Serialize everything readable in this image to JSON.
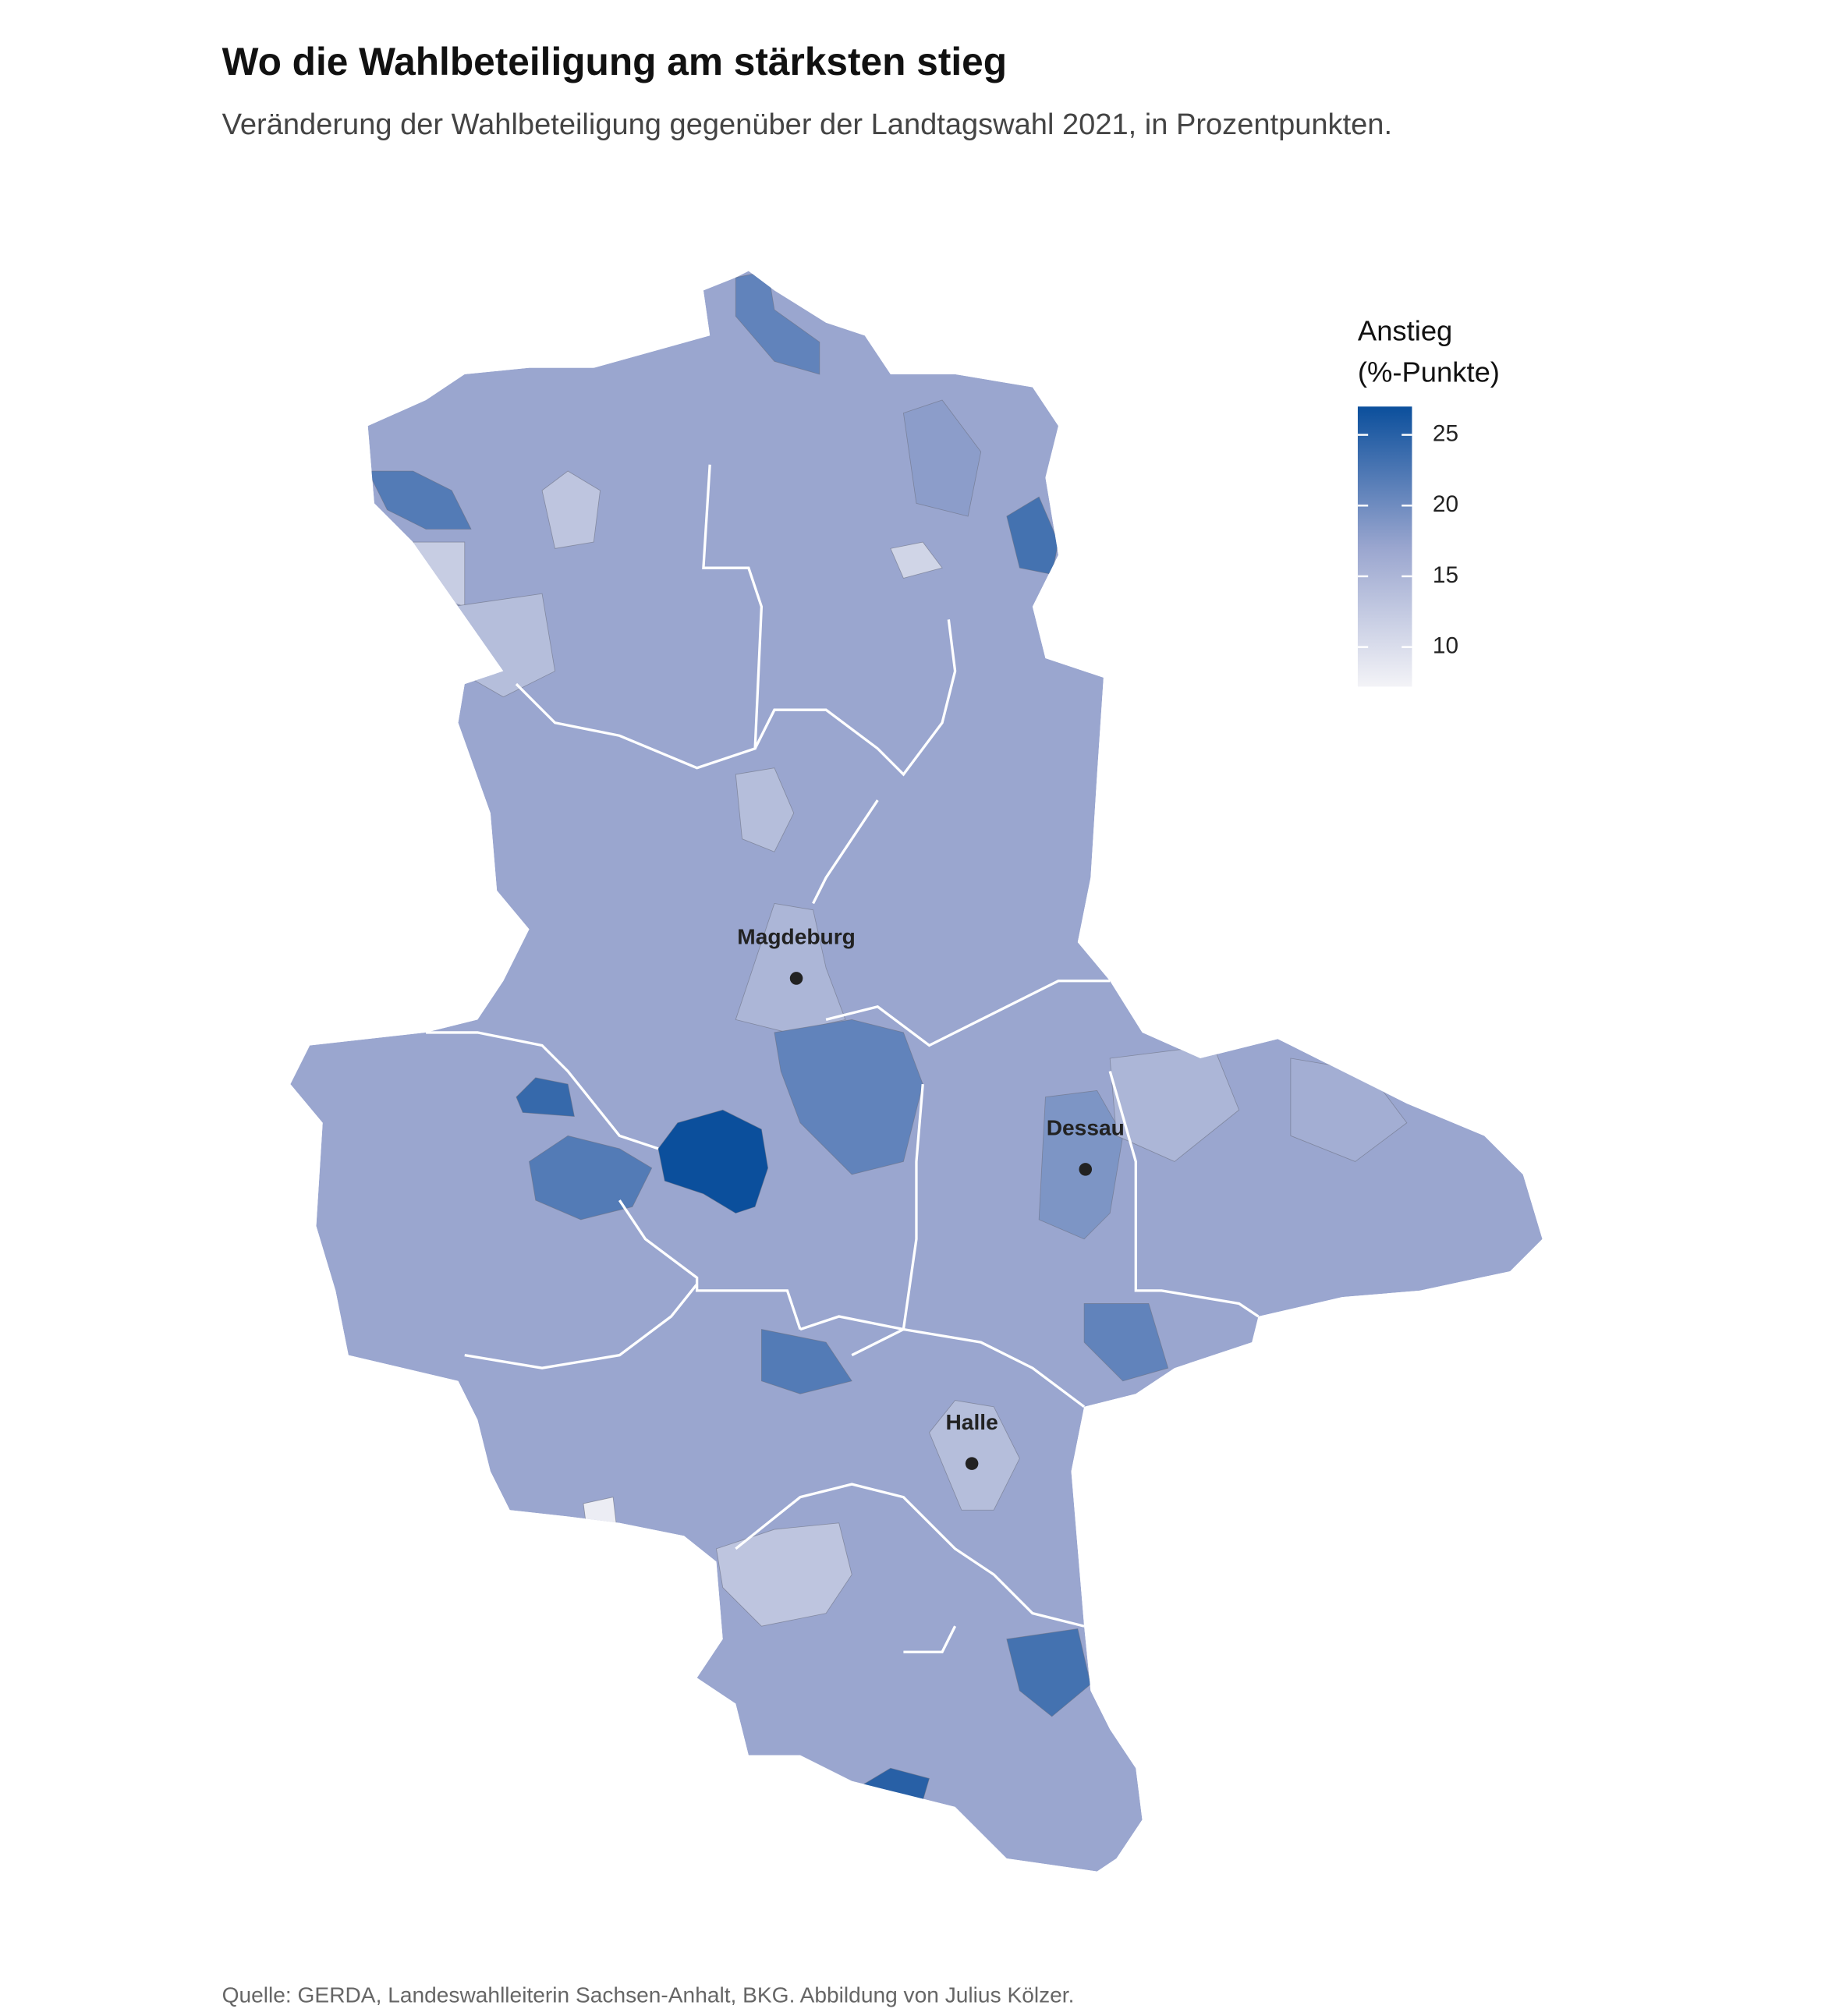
{
  "chart_data": {
    "type": "choropleth",
    "title": "Wo die Wahlbeteiligung am stärksten stieg",
    "subtitle": "Veränderung der Wahlbeteiligung gegenüber der Landtagswahl 2021, in Prozentpunkten.",
    "legend_title": [
      "Anstieg",
      "(%-Punkte)"
    ],
    "clim": [
      7.2,
      27
    ],
    "cticks": [
      10,
      15,
      20,
      25
    ],
    "colors": [
      "#f3f3f7",
      "#9aa6cf",
      "#0b4f9c"
    ],
    "color_stops": [
      7.2,
      17,
      27
    ],
    "values": [
      17,
      27,
      24,
      22,
      23,
      25,
      23,
      22,
      21,
      13,
      11,
      8,
      14,
      15,
      19,
      14,
      13,
      21,
      22,
      21,
      12,
      16,
      15,
      14,
      18
    ],
    "cities": [
      "Magdeburg",
      "Dessau",
      "Halle"
    ],
    "source": "Quelle: GERDA, Landeswahlleiterin Sachsen-Anhalt, BKG. Abbildung von Julius Kölzer."
  }
}
